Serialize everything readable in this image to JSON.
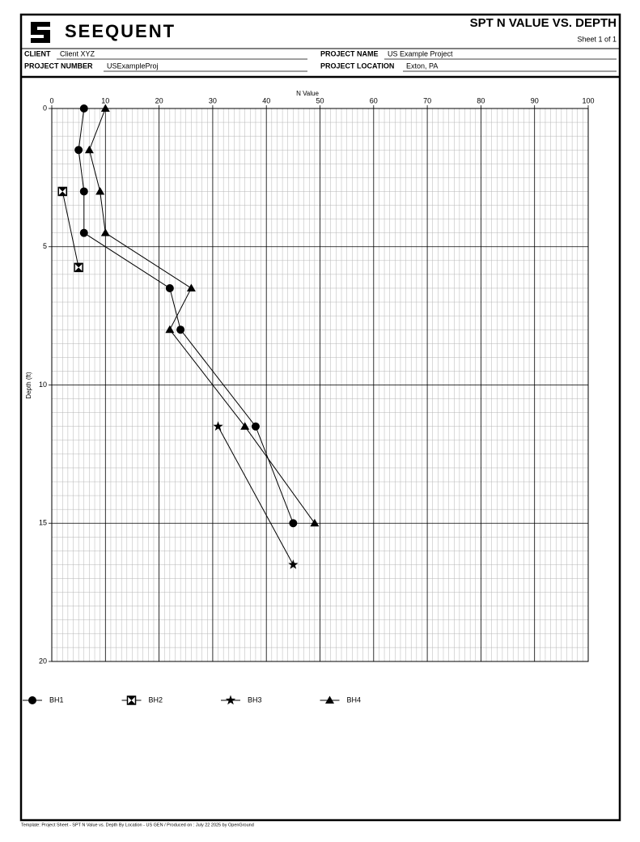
{
  "header": {
    "logo": "SEEQUENT",
    "title": "SPT N VALUE VS. DEPTH",
    "sheet": "Sheet 1 of 1",
    "client_label": "CLIENT",
    "client": "Client XYZ",
    "project_number_label": "PROJECT NUMBER",
    "project_number": "USExampleProj",
    "project_name_label": "PROJECT NAME",
    "project_name": "US Example Project",
    "project_location_label": "PROJECT LOCATION",
    "project_location": "Exton, PA"
  },
  "chart_data": {
    "type": "line",
    "x_label": "N Value",
    "y_label": "Depth (ft)",
    "xlim": [
      0,
      100
    ],
    "xticks": [
      0,
      10,
      20,
      30,
      40,
      50,
      60,
      70,
      80,
      90,
      100
    ],
    "ylim": [
      0,
      20
    ],
    "yticks": [
      0,
      5,
      10,
      15,
      20
    ],
    "y_inverted": true,
    "grid": true,
    "minor_grid": {
      "x": 1,
      "y": 0.5
    },
    "legend": "bottom",
    "series": [
      {
        "name": "BH1",
        "marker": "circle",
        "color": "#000000",
        "x": [
          6,
          5,
          6,
          6,
          22,
          24,
          38,
          45
        ],
        "y": [
          0,
          1.5,
          3,
          4.5,
          6.5,
          8,
          11.5,
          15
        ]
      },
      {
        "name": "BH2",
        "marker": "boxx",
        "color": "#000000",
        "x": [
          2,
          5
        ],
        "y": [
          3,
          5.75
        ]
      },
      {
        "name": "BH3",
        "marker": "star",
        "color": "#000000",
        "x": [
          31,
          45
        ],
        "y": [
          11.5,
          16.5
        ]
      },
      {
        "name": "BH4",
        "marker": "triangle",
        "color": "#000000",
        "x": [
          10,
          7,
          9,
          10,
          26,
          22,
          36,
          49
        ],
        "y": [
          0,
          1.5,
          3,
          4.5,
          6.5,
          8,
          11.5,
          15
        ]
      }
    ]
  },
  "footer": "Template: Project Sheet - SPT N Value vs. Depth By Location - US GEN / Produced on : July 22 2025 by OpenGround"
}
